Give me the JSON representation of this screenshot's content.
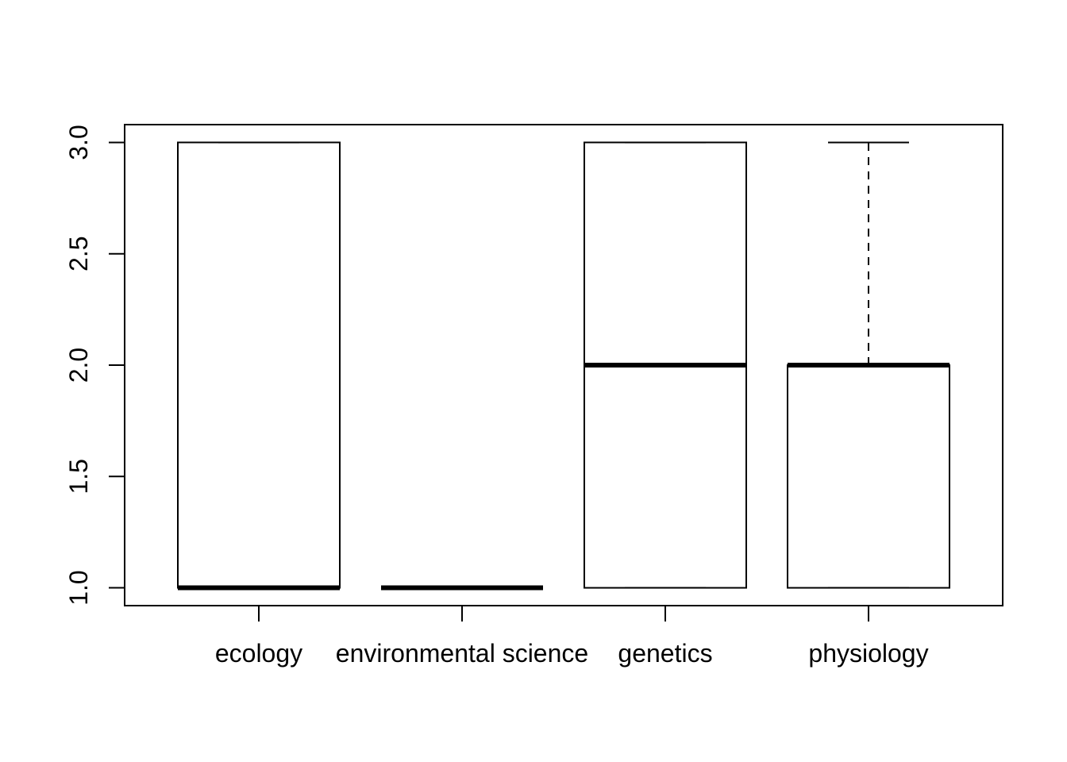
{
  "chart_data": {
    "type": "boxplot",
    "categories": [
      "ecology",
      "environmental science",
      "genetics",
      "physiology"
    ],
    "boxes": [
      {
        "category": "ecology",
        "min": 1,
        "q1": 1,
        "median": 1,
        "q3": 3,
        "max": 3
      },
      {
        "category": "environmental science",
        "min": 1,
        "q1": 1,
        "median": 1,
        "q3": 1,
        "max": 1
      },
      {
        "category": "genetics",
        "min": 1,
        "q1": 1,
        "median": 2,
        "q3": 3,
        "max": 3
      },
      {
        "category": "physiology",
        "min": 1,
        "q1": 1,
        "median": 2,
        "q3": 2,
        "max": 3
      }
    ],
    "yticks": [
      "1.0",
      "1.5",
      "2.0",
      "2.5",
      "3.0"
    ],
    "ylim": [
      0.92,
      3.08
    ],
    "title": "",
    "xlabel": "",
    "ylabel": "",
    "grid": false,
    "colors": {
      "stroke": "#000000",
      "fill": "#ffffff"
    }
  }
}
